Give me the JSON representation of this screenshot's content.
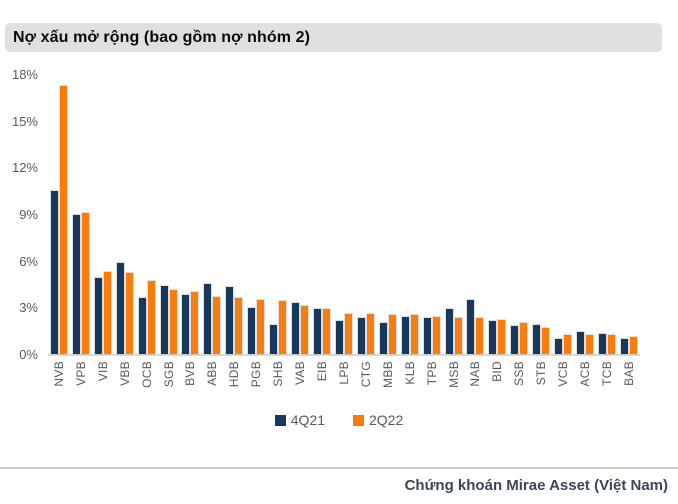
{
  "title": "Nợ xấu mở rộng (bao gồm nợ nhóm 2)",
  "footer": {
    "source": "Chứng khoán Mirae Asset (Việt Nam)"
  },
  "colors": {
    "series_4q21": "#17375d",
    "series_2q22": "#f97d0e",
    "title_background": "#e0e0e0",
    "axis_text": "#595959",
    "axis_line": "#d9d9d9",
    "footer_divider": "#dcc8ba",
    "footer_text": "#3c4656"
  },
  "chart_data": {
    "type": "bar",
    "title": "Nợ xấu mở rộng (bao gồm nợ nhóm 2)",
    "xlabel": "",
    "ylabel": "",
    "ylim": [
      0,
      18
    ],
    "yticks": [
      "18%",
      "15%",
      "12%",
      "9%",
      "6%",
      "3%",
      "0%"
    ],
    "grid": false,
    "legend_position": "bottom-center",
    "unit": "%",
    "categories": [
      "NVB",
      "VPB",
      "VIB",
      "VBB",
      "OCB",
      "SGB",
      "BVB",
      "ABB",
      "HDB",
      "PGB",
      "SHB",
      "VAB",
      "EIB",
      "LPB",
      "CTG",
      "MBB",
      "KLB",
      "TPB",
      "MSB",
      "NAB",
      "BID",
      "SSB",
      "STB",
      "VCB",
      "ACB",
      "TCB",
      "BAB"
    ],
    "series": [
      {
        "name": "4Q21",
        "color": "#17375d",
        "values": [
          10.5,
          9.0,
          4.9,
          5.9,
          3.6,
          4.4,
          3.8,
          4.5,
          4.3,
          3.0,
          1.9,
          3.3,
          2.9,
          2.1,
          2.3,
          2.0,
          2.4,
          2.3,
          2.9,
          3.5,
          2.1,
          1.8,
          1.9,
          1.0,
          1.4,
          1.3,
          1.0
        ]
      },
      {
        "name": "2Q22",
        "color": "#f97d0e",
        "values": [
          17.3,
          9.1,
          5.3,
          5.2,
          4.7,
          4.1,
          4.0,
          3.7,
          3.6,
          3.5,
          3.4,
          3.1,
          2.9,
          2.6,
          2.6,
          2.5,
          2.5,
          2.4,
          2.3,
          2.3,
          2.2,
          2.0,
          1.7,
          1.2,
          1.2,
          1.2,
          1.1
        ]
      }
    ]
  }
}
